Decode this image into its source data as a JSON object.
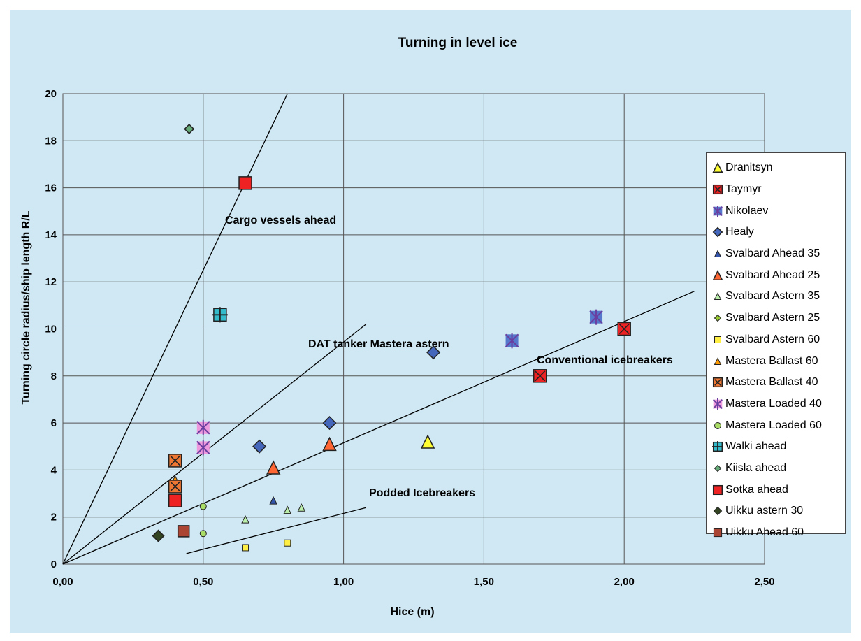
{
  "chart_data": {
    "type": "scatter",
    "title": "Turning in level ice",
    "xlabel": "Hice (m)",
    "ylabel": "Turning circle radius/ship length R/L",
    "xlim": [
      0,
      2.5
    ],
    "ylim": [
      0,
      20
    ],
    "xticks": [
      "0,00",
      "0,50",
      "1,00",
      "1,50",
      "2,00",
      "2,50"
    ],
    "yticks": [
      "0",
      "2",
      "4",
      "6",
      "8",
      "10",
      "12",
      "14",
      "16",
      "18",
      "20"
    ],
    "grid": true,
    "legend_position": "right",
    "series": [
      {
        "name": "Dranitsyn",
        "marker": "triangle",
        "color": "#ffff33",
        "size": 18,
        "points": [
          [
            1.3,
            5.2
          ]
        ]
      },
      {
        "name": "Taymyr",
        "marker": "square-x",
        "color": "#ee2222",
        "size": 18,
        "points": [
          [
            1.7,
            8.0
          ],
          [
            2.0,
            10.0
          ]
        ]
      },
      {
        "name": "Nikolaev",
        "marker": "star",
        "color": "#5577cc",
        "size": 18,
        "points": [
          [
            1.6,
            9.5
          ],
          [
            1.9,
            10.5
          ]
        ]
      },
      {
        "name": "Healy",
        "marker": "diamond",
        "color": "#4466bb",
        "size": 18,
        "points": [
          [
            0.7,
            5.0
          ],
          [
            0.95,
            6.0
          ],
          [
            1.32,
            9.0
          ]
        ]
      },
      {
        "name": "Svalbard Ahead 35",
        "marker": "triangle",
        "color": "#3355aa",
        "size": 10,
        "points": [
          [
            0.75,
            2.7
          ]
        ]
      },
      {
        "name": "Svalbard Ahead 25",
        "marker": "triangle",
        "color": "#ff6633",
        "size": 18,
        "points": [
          [
            0.75,
            4.1
          ],
          [
            0.95,
            5.1
          ]
        ]
      },
      {
        "name": "Svalbard Astern 35",
        "marker": "triangle",
        "color": "#bbeeaa",
        "size": 10,
        "points": [
          [
            0.65,
            1.9
          ],
          [
            0.8,
            2.3
          ],
          [
            0.85,
            2.4
          ]
        ]
      },
      {
        "name": "Svalbard Astern 25",
        "marker": "diamond",
        "color": "#99cc33",
        "size": 10,
        "points": []
      },
      {
        "name": "Svalbard Astern 60",
        "marker": "square",
        "color": "#ffee44",
        "size": 9,
        "points": [
          [
            0.65,
            0.7
          ],
          [
            0.8,
            0.9
          ]
        ]
      },
      {
        "name": "Mastera Ballast 60",
        "marker": "triangle",
        "color": "#ff9900",
        "size": 10,
        "points": [
          [
            0.4,
            3.6
          ]
        ]
      },
      {
        "name": "Mastera Ballast 40",
        "marker": "square-x",
        "color": "#ee7733",
        "size": 18,
        "points": [
          [
            0.4,
            4.4
          ],
          [
            0.4,
            3.3
          ]
        ]
      },
      {
        "name": "Mastera Loaded 40",
        "marker": "star",
        "color": "#ee99dd",
        "size": 18,
        "points": [
          [
            0.5,
            5.8
          ],
          [
            0.5,
            4.95
          ]
        ]
      },
      {
        "name": "Mastera Loaded 60",
        "marker": "circle",
        "color": "#aadd66",
        "size": 9,
        "points": [
          [
            0.5,
            2.45
          ],
          [
            0.5,
            1.3
          ]
        ]
      },
      {
        "name": "Walki ahead",
        "marker": "plus-square",
        "color": "#33bbcc",
        "size": 18,
        "points": [
          [
            0.56,
            10.6
          ]
        ]
      },
      {
        "name": "Kiisla ahead",
        "marker": "diamond",
        "color": "#66aa77",
        "size": 13,
        "points": [
          [
            0.45,
            18.5
          ]
        ]
      },
      {
        "name": "Sotka ahead",
        "marker": "square",
        "color": "#ee2222",
        "size": 18,
        "points": [
          [
            0.65,
            16.2
          ],
          [
            0.4,
            2.7
          ]
        ]
      },
      {
        "name": "Uikku astern 30",
        "marker": "diamond",
        "color": "#334422",
        "size": 16,
        "points": [
          [
            0.34,
            1.2
          ]
        ]
      },
      {
        "name": "Uikku Ahead 60",
        "marker": "square",
        "color": "#aa4433",
        "size": 16,
        "points": [
          [
            0.43,
            1.4
          ]
        ]
      }
    ],
    "trend_lines": [
      {
        "label": "Cargo vessels ahead",
        "from": [
          0,
          0
        ],
        "to": [
          0.8,
          20
        ]
      },
      {
        "label": "DAT tanker Mastera astern",
        "from": [
          0,
          0
        ],
        "to": [
          1.08,
          10.2
        ]
      },
      {
        "label": "Conventional icebreakers",
        "from": [
          0,
          0
        ],
        "to": [
          2.25,
          11.6
        ]
      },
      {
        "label": "Podded Icebreakers",
        "from": [
          0.44,
          0.45
        ],
        "to": [
          1.08,
          2.4
        ]
      }
    ]
  }
}
